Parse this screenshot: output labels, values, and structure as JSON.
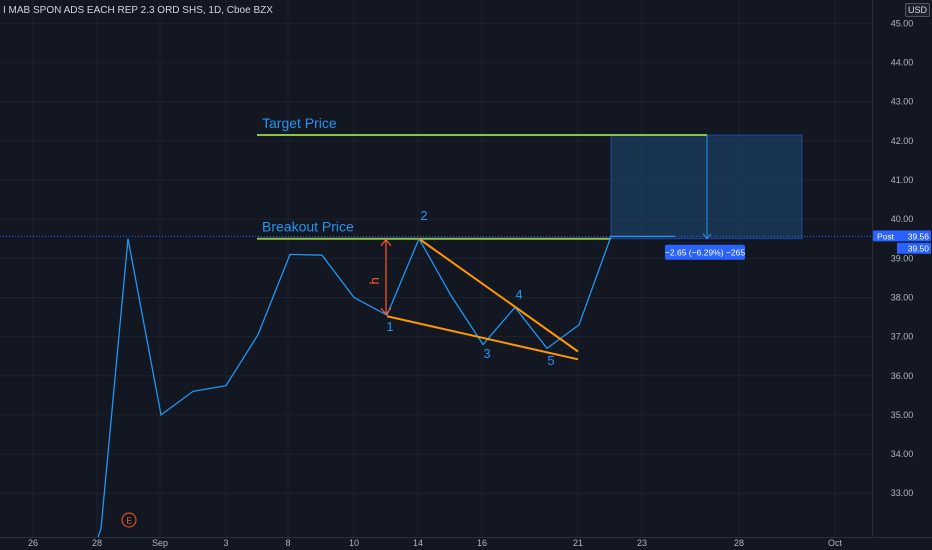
{
  "header": {
    "title": "I MAB SPON ADS EACH REP 2.3 ORD SHS, 1D, Cboe BZX",
    "currency": "USD"
  },
  "colors": {
    "background": "#131722",
    "price_line": "#2196f3",
    "pattern_lines": "#ff9800",
    "level_lines": "#8bc34a",
    "label_text": "#2196f3",
    "height_arrow": "#ff5722",
    "projection_box": "#1e4a75",
    "tooltip_bg": "#2962ff",
    "post_label_bg": "#2962ff"
  },
  "chart_data": {
    "type": "line",
    "x_tick_labels": [
      "26",
      "28",
      "Sep",
      "3",
      "8",
      "10",
      "14",
      "16",
      "21",
      "23",
      "28",
      "Oct"
    ],
    "y_tick_labels": [
      "33.00",
      "34.00",
      "35.00",
      "36.00",
      "37.00",
      "38.00",
      "39.00",
      "40.00",
      "41.00",
      "42.00",
      "43.00",
      "44.00",
      "45.00"
    ],
    "ylim": [
      32.15,
      45.4
    ],
    "series": [
      {
        "x": [
          "Aug 28",
          "Aug 30",
          "Aug 31",
          "Sep 3",
          "Sep 4",
          "Sep 5",
          "Sep 6",
          "Sep 8",
          "Sep 9",
          "Sep 10",
          "Sep 11",
          "Sep 14",
          "Sep 15",
          "Sep 16",
          "Sep 17",
          "Sep 18",
          "Sep 20",
          "Sep 21",
          "Sep 22"
        ],
        "values": [
          32.1,
          39.5,
          35.0,
          35.6,
          35.75,
          37.05,
          39.1,
          39.08,
          38.0,
          37.55,
          39.5,
          38.05,
          36.8,
          37.75,
          36.7,
          37.3,
          39.56,
          39.56,
          39.56
        ]
      }
    ],
    "annotations": {
      "target_price_label": "Target Price",
      "target_price_value": 42.15,
      "breakout_price_label": "Breakout Price",
      "breakout_price_value": 39.5,
      "height_label": "h",
      "wave_labels": [
        "1",
        "2",
        "3",
        "4",
        "5"
      ],
      "earnings_marker": "E",
      "projection_label": "−2.65 (−6.29%) −265"
    },
    "price_labels": {
      "post_label": "Post",
      "post_value": "39.56",
      "last_value": "39.50"
    },
    "grid": true
  }
}
